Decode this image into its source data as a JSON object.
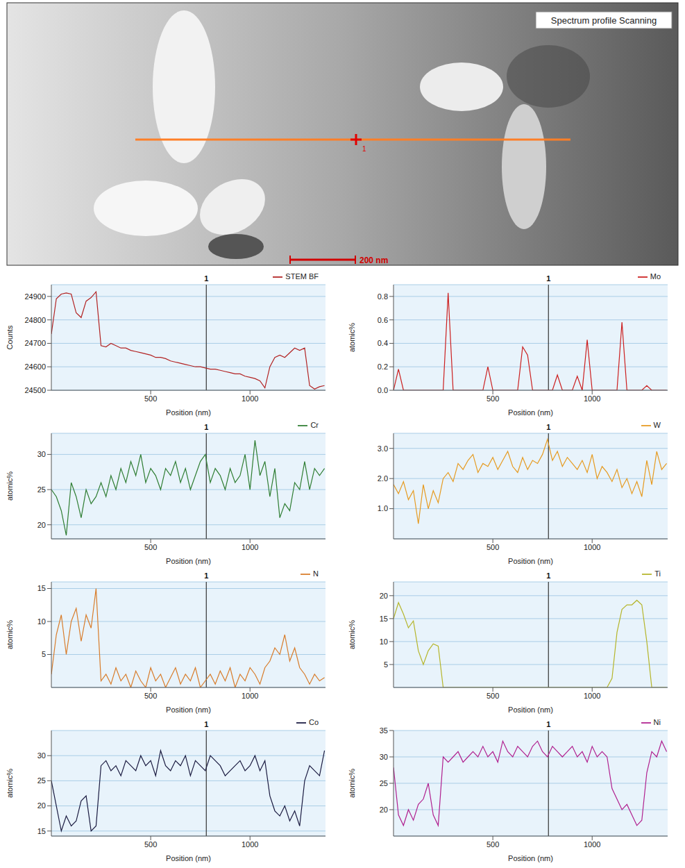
{
  "image": {
    "label": "Spectrum profile Scanning",
    "scale_bar": "200 nm",
    "marker_label": "1"
  },
  "chart_data": [
    {
      "type": "line",
      "y_label": "Counts",
      "x_label": "Position (nm)",
      "x": [
        0,
        25,
        50,
        75,
        100,
        125,
        150,
        175,
        200,
        225,
        250,
        275,
        300,
        325,
        350,
        375,
        400,
        425,
        450,
        475,
        500,
        525,
        550,
        575,
        600,
        625,
        650,
        675,
        700,
        725,
        750,
        775,
        800,
        825,
        850,
        875,
        900,
        925,
        950,
        975,
        1000,
        1025,
        1050,
        1075,
        1100,
        1125,
        1150,
        1175,
        1200,
        1225,
        1250,
        1275,
        1300,
        1325,
        1350,
        1375
      ],
      "series": [
        {
          "name": "STEM BF",
          "color": "#b22222",
          "values": [
            24740,
            24890,
            24910,
            24915,
            24910,
            24830,
            24810,
            24880,
            24895,
            24920,
            24690,
            24685,
            24700,
            24690,
            24680,
            24680,
            24670,
            24665,
            24660,
            24655,
            24650,
            24640,
            24640,
            24635,
            24625,
            24620,
            24615,
            24610,
            24605,
            24600,
            24600,
            24595,
            24590,
            24590,
            24585,
            24580,
            24575,
            24570,
            24570,
            24560,
            24555,
            24550,
            24540,
            24510,
            24600,
            24640,
            24650,
            24640,
            24660,
            24680,
            24670,
            24680,
            24520,
            24505,
            24515,
            24520
          ]
        }
      ],
      "xlim": [
        0,
        1380
      ],
      "xticks": [
        500,
        1000
      ],
      "ylim": [
        24500,
        24950
      ],
      "yticks": [
        24500,
        24600,
        24700,
        24800,
        24900
      ],
      "grid": true,
      "legend": "top right",
      "annotations": [
        {
          "x": 780,
          "label": "1"
        }
      ]
    },
    {
      "type": "line",
      "y_label": "atomic%",
      "x_label": "Position (nm)",
      "x": [
        0,
        25,
        50,
        75,
        100,
        125,
        150,
        175,
        200,
        225,
        250,
        275,
        300,
        325,
        350,
        375,
        400,
        425,
        450,
        475,
        500,
        525,
        550,
        575,
        600,
        625,
        650,
        675,
        700,
        725,
        750,
        775,
        800,
        825,
        850,
        875,
        900,
        925,
        950,
        975,
        1000,
        1025,
        1050,
        1075,
        1100,
        1125,
        1150,
        1175,
        1200,
        1225,
        1250,
        1275,
        1300,
        1325,
        1350,
        1375
      ],
      "series": [
        {
          "name": "Mo",
          "color": "#cc1f1f",
          "values": [
            0,
            0.18,
            0,
            0,
            0,
            0,
            0,
            0,
            0,
            0,
            0,
            0.83,
            0,
            0,
            0,
            0,
            0,
            0,
            0,
            0.2,
            0,
            0,
            0,
            0,
            0,
            0,
            0.37,
            0.3,
            0,
            0,
            0,
            0,
            0,
            0.13,
            0,
            0,
            0,
            0.12,
            0,
            0.43,
            0,
            0,
            0,
            0,
            0,
            0,
            0.58,
            0,
            0,
            0,
            0,
            0.04,
            0,
            0,
            0,
            0
          ]
        }
      ],
      "xlim": [
        0,
        1380
      ],
      "xticks": [
        500,
        1000
      ],
      "ylim": [
        0,
        0.9
      ],
      "yticks": [
        {
          "value": 0,
          "label": "0.0"
        },
        0.2,
        0.4,
        0.6,
        0.8
      ],
      "grid": true,
      "legend": "top right",
      "annotations": [
        {
          "x": 780,
          "label": "1"
        }
      ]
    },
    {
      "type": "line",
      "y_label": "atomic%",
      "x_label": "Position (nm)",
      "x": [
        0,
        25,
        50,
        75,
        100,
        125,
        150,
        175,
        200,
        225,
        250,
        275,
        300,
        325,
        350,
        375,
        400,
        425,
        450,
        475,
        500,
        525,
        550,
        575,
        600,
        625,
        650,
        675,
        700,
        725,
        750,
        775,
        800,
        825,
        850,
        875,
        900,
        925,
        950,
        975,
        1000,
        1025,
        1050,
        1075,
        1100,
        1125,
        1150,
        1175,
        1200,
        1225,
        1250,
        1275,
        1300,
        1325,
        1350,
        1375
      ],
      "series": [
        {
          "name": "Cr",
          "color": "#2e7d32",
          "values": [
            25,
            24,
            22,
            18.5,
            26,
            24,
            21,
            25,
            23,
            24,
            26,
            24,
            27,
            25,
            28,
            26,
            29,
            27,
            30,
            26,
            28,
            27,
            25,
            28,
            27,
            29,
            26,
            28,
            25,
            27,
            29,
            30,
            26,
            28,
            27,
            25,
            28,
            26,
            27,
            30,
            25,
            32,
            27,
            29,
            24,
            28,
            21,
            23,
            22,
            26,
            25,
            29,
            25,
            28,
            27,
            28
          ]
        }
      ],
      "xlim": [
        0,
        1380
      ],
      "xticks": [
        500,
        1000
      ],
      "ylim": [
        18,
        33
      ],
      "yticks": [
        20,
        25,
        30
      ],
      "grid": true,
      "legend": "top right",
      "annotations": [
        {
          "x": 780,
          "label": "1"
        }
      ]
    },
    {
      "type": "line",
      "x_label": "Position (nm)",
      "x": [
        0,
        25,
        50,
        75,
        100,
        125,
        150,
        175,
        200,
        225,
        250,
        275,
        300,
        325,
        350,
        375,
        400,
        425,
        450,
        475,
        500,
        525,
        550,
        575,
        600,
        625,
        650,
        675,
        700,
        725,
        750,
        775,
        800,
        825,
        850,
        875,
        900,
        925,
        950,
        975,
        1000,
        1025,
        1050,
        1075,
        1100,
        1125,
        1150,
        1175,
        1200,
        1225,
        1250,
        1275,
        1300,
        1325,
        1350,
        1375
      ],
      "series": [
        {
          "name": "W",
          "color": "#e69a1f",
          "values": [
            1.8,
            1.5,
            1.9,
            1.3,
            1.6,
            0.5,
            1.8,
            1.0,
            1.6,
            1.2,
            2.0,
            2.2,
            1.9,
            2.5,
            2.3,
            2.6,
            2.8,
            2.2,
            2.5,
            2.4,
            2.7,
            2.3,
            2.6,
            2.9,
            2.4,
            2.2,
            2.7,
            2.3,
            2.6,
            2.5,
            2.8,
            3.3,
            2.6,
            2.9,
            2.4,
            2.7,
            2.5,
            2.3,
            2.6,
            2.2,
            2.8,
            2.0,
            2.4,
            2.2,
            1.9,
            2.3,
            1.7,
            2.0,
            1.5,
            1.9,
            1.4,
            2.6,
            1.8,
            2.9,
            2.3,
            2.5
          ]
        }
      ],
      "xlim": [
        0,
        1380
      ],
      "xticks": [
        500,
        1000
      ],
      "ylim": [
        0,
        3.5
      ],
      "yticks": [
        {
          "value": 1,
          "label": "1.0"
        },
        {
          "value": 2,
          "label": "2.0"
        },
        {
          "value": 3,
          "label": "3.0"
        }
      ],
      "grid": true,
      "legend": "top right",
      "annotations": [
        {
          "x": 780,
          "label": "1"
        }
      ]
    },
    {
      "type": "line",
      "y_label": "atomic%",
      "x_label": "Position (nm)",
      "x": [
        0,
        25,
        50,
        75,
        100,
        125,
        150,
        175,
        200,
        225,
        250,
        275,
        300,
        325,
        350,
        375,
        400,
        425,
        450,
        475,
        500,
        525,
        550,
        575,
        600,
        625,
        650,
        675,
        700,
        725,
        750,
        775,
        800,
        825,
        850,
        875,
        900,
        925,
        950,
        975,
        1000,
        1025,
        1050,
        1075,
        1100,
        1125,
        1150,
        1175,
        1200,
        1225,
        1250,
        1275,
        1300,
        1325,
        1350,
        1375
      ],
      "series": [
        {
          "name": "N",
          "color": "#d87c2a",
          "values": [
            2,
            8,
            11,
            5,
            10,
            12,
            7,
            11,
            9,
            15,
            1,
            2,
            0.5,
            3,
            1,
            2,
            0,
            2.5,
            1,
            0,
            3,
            1,
            2,
            0,
            1.5,
            3,
            0.5,
            2,
            1,
            3,
            0,
            1,
            2,
            0.5,
            2.5,
            1,
            3,
            0,
            2,
            1,
            3,
            2,
            0.5,
            3,
            4,
            6,
            5,
            8,
            4,
            6,
            3,
            2,
            0.5,
            2,
            1,
            1.5
          ]
        }
      ],
      "xlim": [
        0,
        1380
      ],
      "xticks": [
        500,
        1000
      ],
      "ylim": [
        0,
        16
      ],
      "yticks": [
        5,
        10,
        15
      ],
      "grid": true,
      "legend": "top right",
      "annotations": [
        {
          "x": 780,
          "label": "1"
        }
      ]
    },
    {
      "type": "line",
      "y_label": "atomic%",
      "x_label": "Position (nm)",
      "x": [
        0,
        25,
        50,
        75,
        100,
        125,
        150,
        175,
        200,
        225,
        250,
        275,
        300,
        325,
        350,
        375,
        400,
        425,
        450,
        475,
        500,
        525,
        550,
        575,
        600,
        625,
        650,
        675,
        700,
        725,
        750,
        775,
        800,
        825,
        850,
        875,
        900,
        925,
        950,
        975,
        1000,
        1025,
        1050,
        1075,
        1100,
        1125,
        1150,
        1175,
        1200,
        1225,
        1250,
        1275,
        1300,
        1325,
        1350,
        1375
      ],
      "series": [
        {
          "name": "Ti",
          "color": "#b5b52a",
          "values": [
            15,
            18.5,
            16,
            13,
            14.5,
            8,
            5,
            8,
            9.5,
            9,
            0,
            0,
            0,
            0,
            0,
            0,
            0,
            0,
            0,
            0,
            0,
            0,
            0,
            0,
            0,
            0,
            0,
            0,
            0,
            0,
            0,
            0,
            0,
            0,
            0,
            0,
            0,
            0,
            0,
            0,
            0,
            0,
            0,
            0,
            2,
            12,
            17,
            18,
            18,
            19,
            18,
            10,
            0,
            0,
            0,
            0
          ]
        }
      ],
      "xlim": [
        0,
        1380
      ],
      "xticks": [
        500,
        1000
      ],
      "ylim": [
        0,
        23
      ],
      "yticks": [
        5,
        10,
        15,
        20
      ],
      "grid": true,
      "legend": "top right",
      "annotations": [
        {
          "x": 780,
          "label": "1"
        }
      ]
    },
    {
      "type": "line",
      "y_label": "atomic%",
      "x_label": "Position (nm)",
      "x": [
        0,
        25,
        50,
        75,
        100,
        125,
        150,
        175,
        200,
        225,
        250,
        275,
        300,
        325,
        350,
        375,
        400,
        425,
        450,
        475,
        500,
        525,
        550,
        575,
        600,
        625,
        650,
        675,
        700,
        725,
        750,
        775,
        800,
        825,
        850,
        875,
        900,
        925,
        950,
        975,
        1000,
        1025,
        1050,
        1075,
        1100,
        1125,
        1150,
        1175,
        1200,
        1225,
        1250,
        1275,
        1300,
        1325,
        1350,
        1375
      ],
      "series": [
        {
          "name": "Co",
          "color": "#1a1a40",
          "values": [
            25,
            20,
            15,
            18,
            16,
            17,
            21,
            22,
            15,
            16,
            28,
            29,
            27,
            28,
            26,
            29,
            28,
            27,
            30,
            28,
            29,
            26,
            31,
            28,
            27,
            29,
            28,
            30,
            26,
            29,
            28,
            27,
            30,
            29,
            28,
            26,
            27,
            28,
            29,
            27,
            28,
            30,
            27,
            29,
            22,
            19,
            18,
            20,
            17,
            19,
            16,
            25,
            28,
            27,
            26,
            31
          ]
        }
      ],
      "xlim": [
        0,
        1380
      ],
      "xticks": [
        500,
        1000
      ],
      "ylim": [
        14,
        35
      ],
      "yticks": [
        15,
        20,
        25,
        30
      ],
      "grid": true,
      "legend": "top right",
      "annotations": [
        {
          "x": 780,
          "label": "1"
        }
      ]
    },
    {
      "type": "line",
      "y_label": "atomic%",
      "x_label": "Position (nm)",
      "x": [
        0,
        25,
        50,
        75,
        100,
        125,
        150,
        175,
        200,
        225,
        250,
        275,
        300,
        325,
        350,
        375,
        400,
        425,
        450,
        475,
        500,
        525,
        550,
        575,
        600,
        625,
        650,
        675,
        700,
        725,
        750,
        775,
        800,
        825,
        850,
        875,
        900,
        925,
        950,
        975,
        1000,
        1025,
        1050,
        1075,
        1100,
        1125,
        1150,
        1175,
        1200,
        1225,
        1250,
        1275,
        1300,
        1325,
        1350,
        1375
      ],
      "series": [
        {
          "name": "Ni",
          "color": "#b0208f",
          "values": [
            28,
            19,
            17,
            20,
            18,
            21,
            22,
            25,
            19,
            17,
            30,
            29,
            30,
            31,
            29,
            30,
            31,
            30,
            32,
            30,
            31,
            29,
            33,
            31,
            30,
            32,
            31,
            30,
            32,
            33,
            31,
            30,
            32,
            31,
            30,
            31,
            32,
            30,
            31,
            29,
            32,
            30,
            31,
            30,
            24,
            22,
            20,
            21,
            19,
            17,
            18,
            27,
            31,
            30,
            33,
            31
          ]
        }
      ],
      "xlim": [
        0,
        1380
      ],
      "xticks": [
        500,
        1000
      ],
      "ylim": [
        15,
        35
      ],
      "yticks": [
        20,
        25,
        30,
        35
      ],
      "grid": true,
      "legend": "top right",
      "annotations": [
        {
          "x": 780,
          "label": "1"
        }
      ]
    }
  ]
}
